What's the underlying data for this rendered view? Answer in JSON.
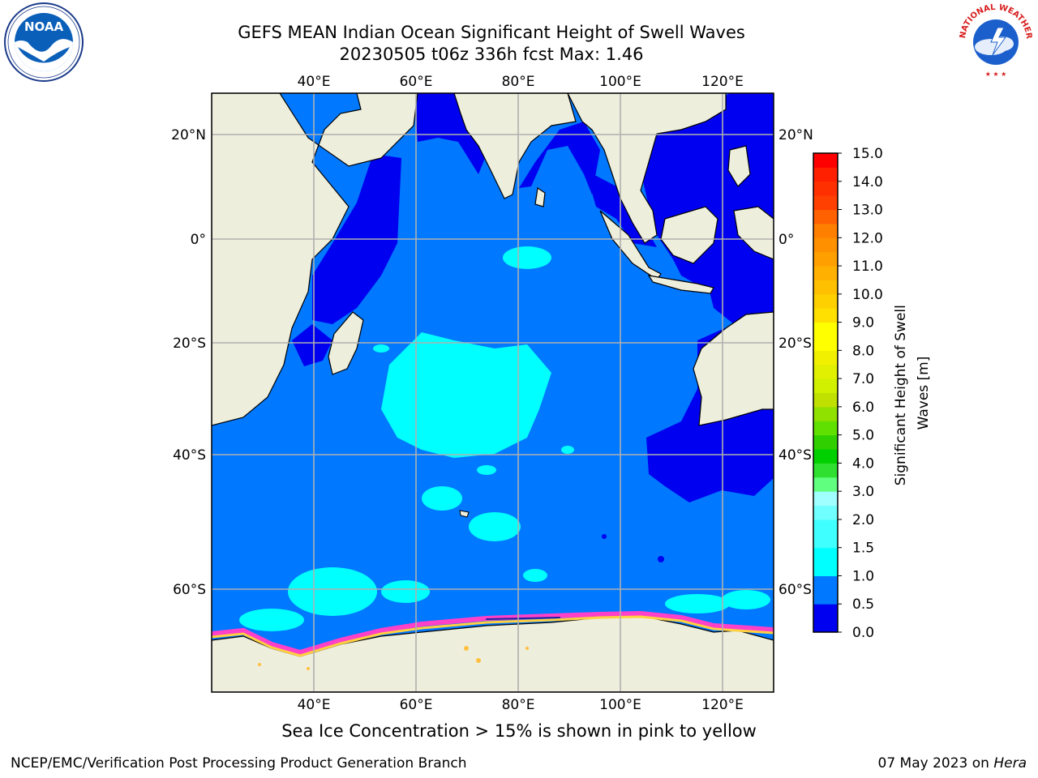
{
  "title_line1": "GEFS MEAN Indian Ocean Significant Height of Swell Waves",
  "title_line2": "20230505 t06z 336h fcst   Max: 1.46",
  "logos": {
    "left": {
      "text": "NOAA",
      "ring_text": "NATIONAL OCEANIC AND ATMOSPHERIC ADMINISTRATION · U.S. DEPARTMENT OF COMMERCE",
      "icon": "noaa-logo-icon"
    },
    "right": {
      "ring_text": "NATIONAL WEATHER SERVICE",
      "icon": "nws-logo-icon"
    }
  },
  "colors": {
    "deep_blue": "#0000f0",
    "ocean_blue": "#0078ff",
    "cyan": "#00ffff",
    "light_cyan": "#50ffff",
    "land": "#eeeedd",
    "ice_pink": "#ff40c8",
    "ice_yellow": "#ffd040",
    "grid": "#b0b0b0"
  },
  "chart_data": {
    "type": "heatmap",
    "lon_ticks_top": [
      "40°E",
      "60°E",
      "80°E",
      "100°E",
      "120°E"
    ],
    "lon_ticks_bottom": [
      "40°E",
      "60°E",
      "80°E",
      "100°E",
      "120°E"
    ],
    "lat_ticks_left": [
      "20°N",
      "0°",
      "20°S",
      "40°S",
      "60°S"
    ],
    "lat_ticks_right": [
      "20°N",
      "0°",
      "20°S",
      "40°S",
      "60°S"
    ],
    "lon_values": [
      40,
      60,
      80,
      100,
      120
    ],
    "lat_values": [
      20,
      0,
      -20,
      -40,
      -60
    ],
    "lon_range": [
      20,
      130
    ],
    "lat_range": [
      -72,
      28
    ],
    "grid": true,
    "colorbar": {
      "label": "Significant Height of Swell Waves [m]",
      "ticks": [
        "15.0",
        "14.0",
        "13.0",
        "12.0",
        "11.0",
        "10.0",
        "9.0",
        "8.0",
        "7.0",
        "6.0",
        "5.0",
        "4.0",
        "3.0",
        "2.0",
        "1.5",
        "1.0",
        "0.5",
        "0.0"
      ],
      "levels": [
        0.0,
        0.5,
        1.0,
        1.5,
        2.0,
        2.5,
        3.0,
        3.5,
        4.0,
        4.5,
        5.0,
        5.5,
        6.0,
        6.5,
        7.0,
        7.5,
        8.0,
        8.5,
        9.0,
        9.5,
        10.0,
        10.5,
        11.0,
        11.5,
        12.0,
        12.5,
        13.0,
        13.5,
        14.0,
        14.5,
        15.0
      ],
      "band_colors": [
        "#0000f0",
        "#0078ff",
        "#00ffff",
        "#40ffff",
        "#70ffff",
        "#a0ffff",
        "#60ff80",
        "#30e030",
        "#00d000",
        "#30d000",
        "#60e000",
        "#90e000",
        "#c0e000",
        "#d0f000",
        "#e0f000",
        "#f0f000",
        "#ffff00",
        "#ffff00",
        "#ffe000",
        "#ffd000",
        "#ffc000",
        "#ffb000",
        "#ffa000",
        "#ff9000",
        "#ff8000",
        "#ff6000",
        "#ff4000",
        "#ff3000",
        "#ff2000",
        "#ff0000"
      ]
    },
    "max_value": 1.46
  },
  "note": "Sea Ice Concentration > 15% is shown in pink to yellow",
  "footer": {
    "left": "NCEP/EMC/Verification Post Processing Product Generation Branch",
    "date": "07 May 2023 on ",
    "machine": "Hera"
  }
}
